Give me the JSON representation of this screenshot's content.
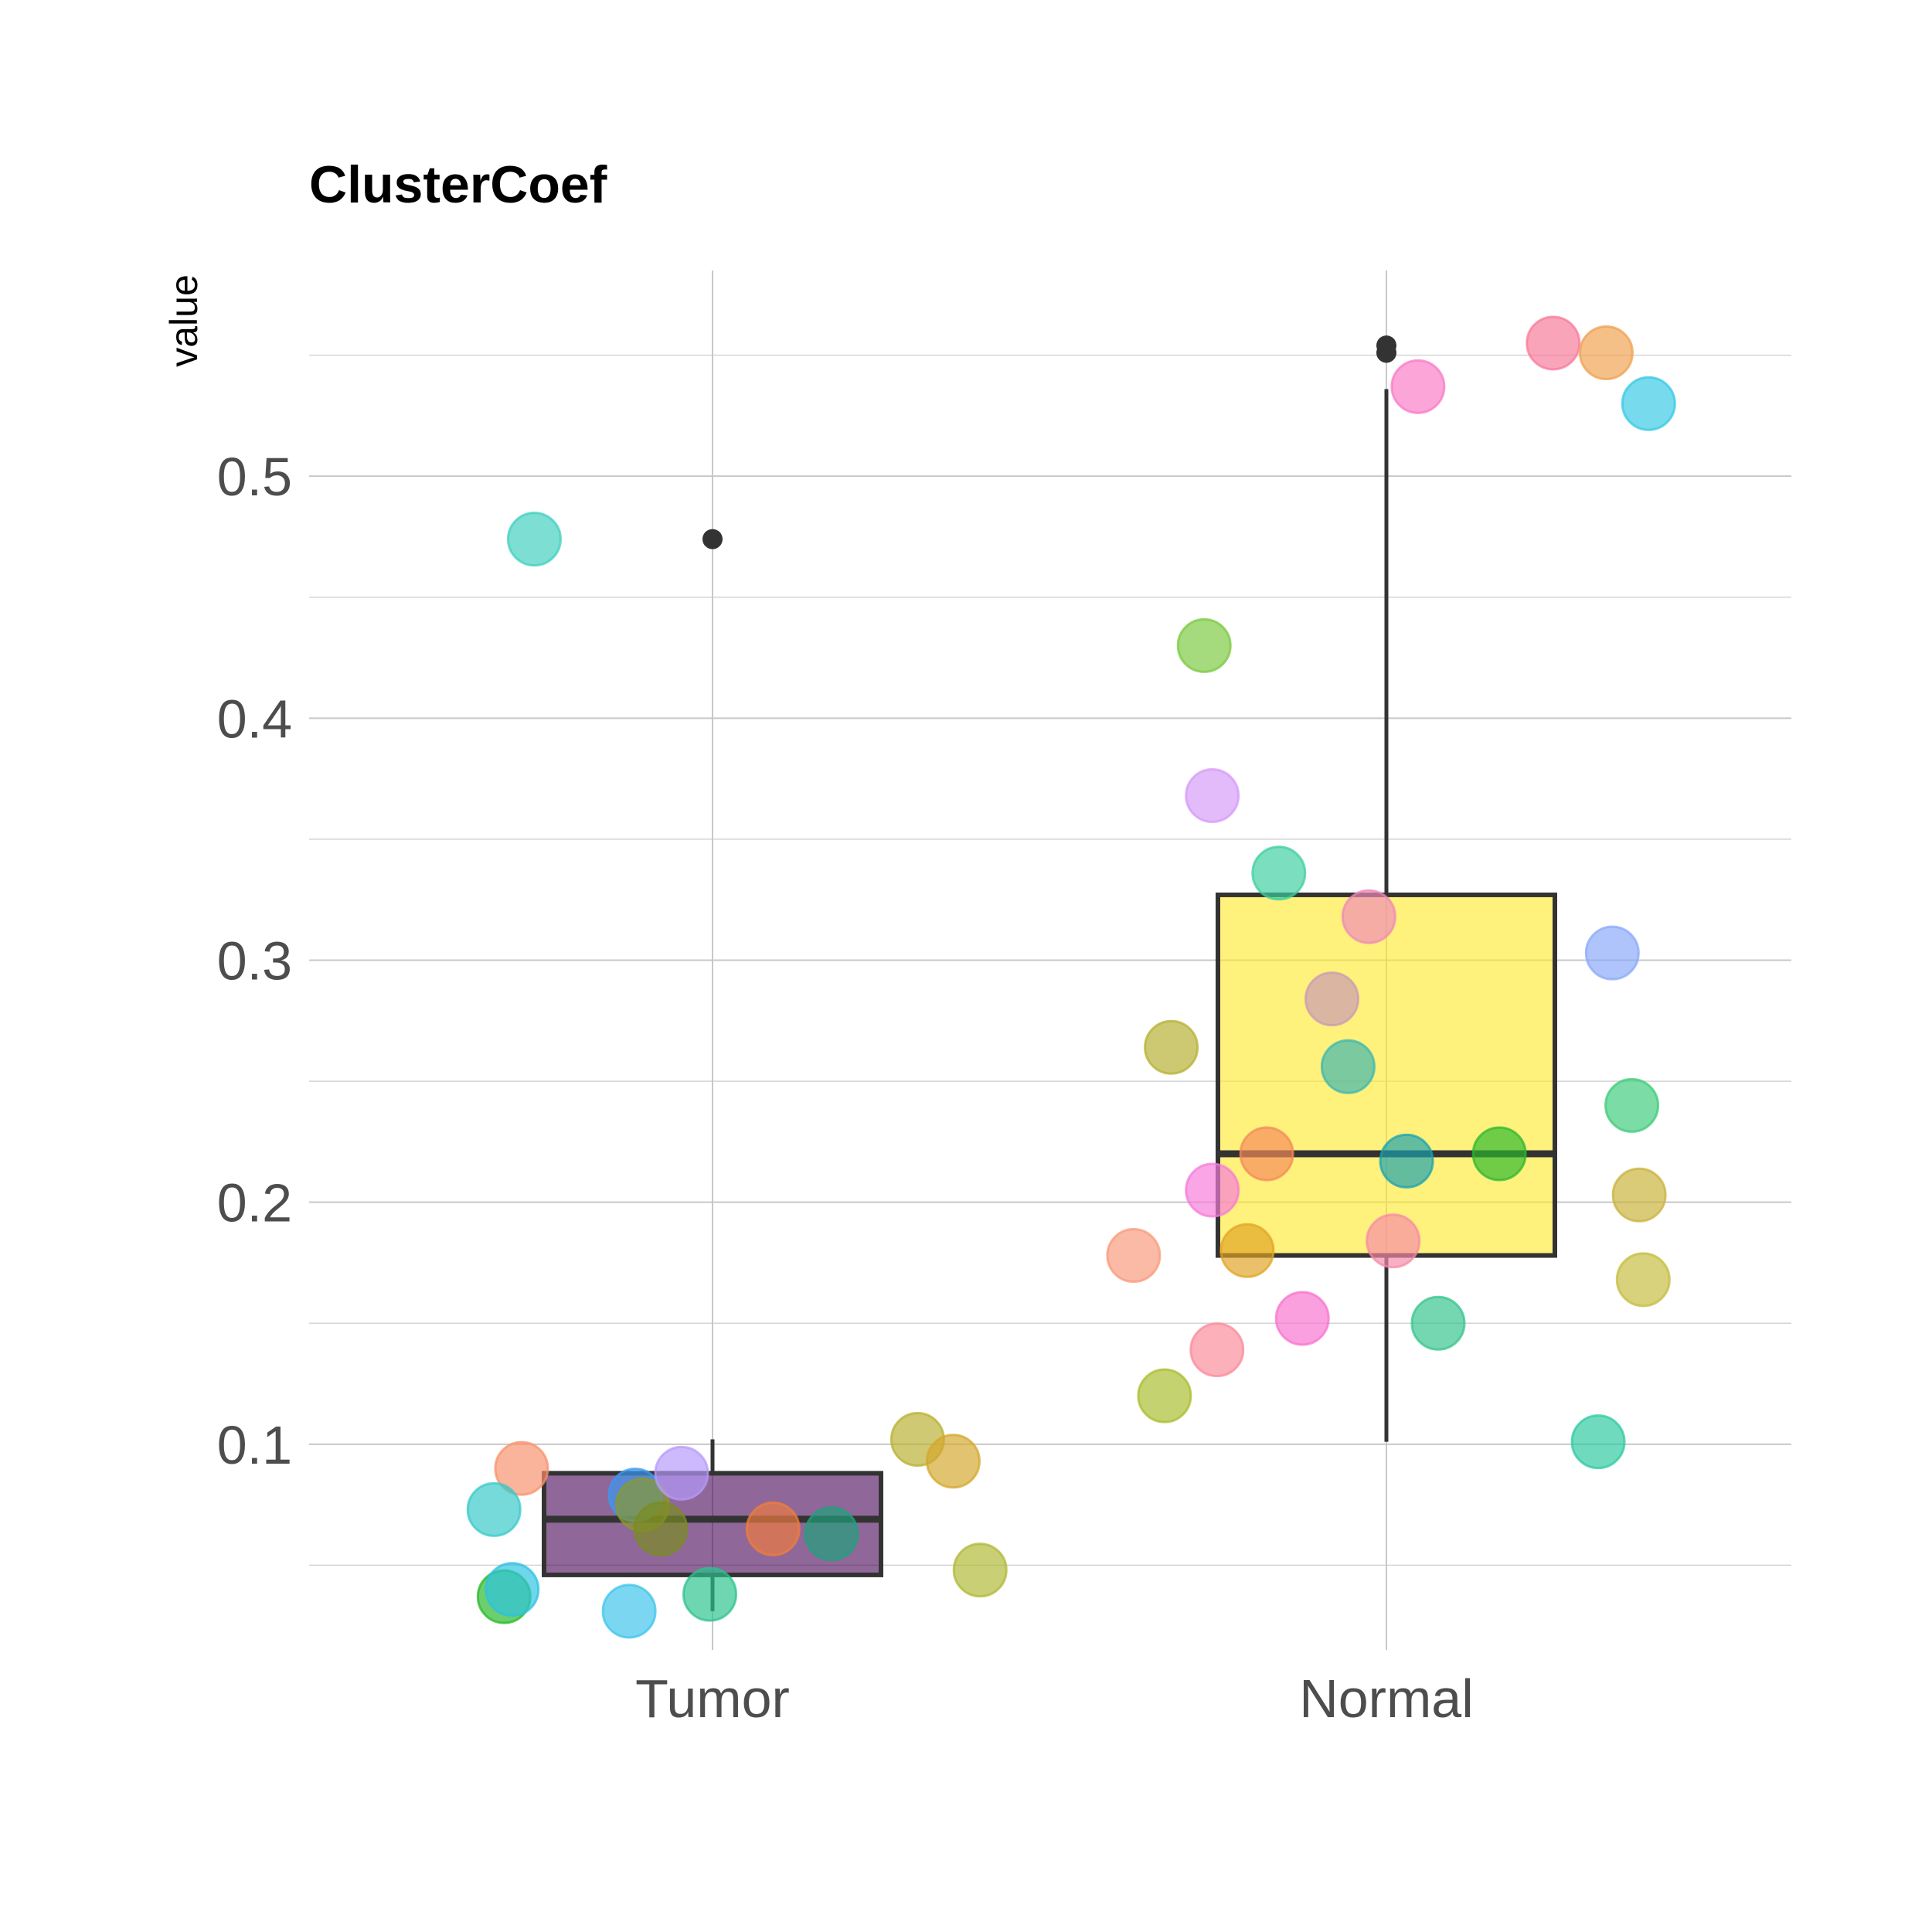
{
  "chart_data": {
    "type": "box",
    "title": "ClusterCoef",
    "ylabel": "value",
    "xlabel": "",
    "categories": [
      "Tumor",
      "Normal"
    ],
    "yticks": [
      0.1,
      0.2,
      0.3,
      0.4,
      0.5
    ],
    "ylim": [
      0.015,
      0.585
    ],
    "grid": true,
    "boxes": [
      {
        "category": "Tumor",
        "fill": "#440154",
        "q1": 0.046,
        "median": 0.069,
        "q3": 0.088,
        "whisker_low": 0.031,
        "whisker_high": 0.102,
        "outliers": [
          0.474
        ]
      },
      {
        "category": "Normal",
        "fill": "#fde725",
        "q1": 0.178,
        "median": 0.22,
        "q3": 0.327,
        "whisker_low": 0.101,
        "whisker_high": 0.536,
        "outliers": [
          0.551,
          0.554
        ]
      }
    ],
    "points": [
      {
        "category": "Tumor",
        "jitter": -0.265,
        "y": 0.474,
        "color": "#3fcfbf"
      },
      {
        "category": "Tumor",
        "jitter": -0.284,
        "y": 0.09,
        "color": "#f8916b"
      },
      {
        "category": "Tumor",
        "jitter": -0.325,
        "y": 0.073,
        "color": "#35c9c9"
      },
      {
        "category": "Tumor",
        "jitter": -0.31,
        "y": 0.037,
        "color": "#27b827"
      },
      {
        "category": "Tumor",
        "jitter": -0.298,
        "y": 0.04,
        "color": "#2cc2e2"
      },
      {
        "category": "Tumor",
        "jitter": -0.124,
        "y": 0.031,
        "color": "#3cc4ea"
      },
      {
        "category": "Tumor",
        "jitter": -0.115,
        "y": 0.079,
        "color": "#3a9af2"
      },
      {
        "category": "Tumor",
        "jitter": -0.104,
        "y": 0.075,
        "color": "#8a9a2c"
      },
      {
        "category": "Tumor",
        "jitter": -0.077,
        "y": 0.065,
        "color": "#7a8c20"
      },
      {
        "category": "Tumor",
        "jitter": -0.046,
        "y": 0.088,
        "color": "#b59afa"
      },
      {
        "category": "Tumor",
        "jitter": -0.004,
        "y": 0.038,
        "color": "#2bc28e"
      },
      {
        "category": "Tumor",
        "jitter": 0.09,
        "y": 0.065,
        "color": "#ef7c3e"
      },
      {
        "category": "Tumor",
        "jitter": 0.177,
        "y": 0.063,
        "color": "#1fa27c"
      },
      {
        "category": "Tumor",
        "jitter": 0.305,
        "y": 0.102,
        "color": "#b8b030"
      },
      {
        "category": "Tumor",
        "jitter": 0.358,
        "y": 0.093,
        "color": "#d4a72c"
      },
      {
        "category": "Tumor",
        "jitter": 0.398,
        "y": 0.048,
        "color": "#b0b834"
      },
      {
        "category": "Normal",
        "jitter": -0.376,
        "y": 0.178,
        "color": "#f89a7a"
      },
      {
        "category": "Normal",
        "jitter": -0.33,
        "y": 0.12,
        "color": "#a9bc2c"
      },
      {
        "category": "Normal",
        "jitter": -0.32,
        "y": 0.264,
        "color": "#b6b030"
      },
      {
        "category": "Normal",
        "jitter": -0.271,
        "y": 0.43,
        "color": "#7ac83f"
      },
      {
        "category": "Normal",
        "jitter": -0.252,
        "y": 0.139,
        "color": "#fb8a9a"
      },
      {
        "category": "Normal",
        "jitter": -0.259,
        "y": 0.368,
        "color": "#d59af8"
      },
      {
        "category": "Normal",
        "jitter": -0.259,
        "y": 0.205,
        "color": "#f77ad8"
      },
      {
        "category": "Normal",
        "jitter": -0.207,
        "y": 0.18,
        "color": "#e0a424"
      },
      {
        "category": "Normal",
        "jitter": -0.178,
        "y": 0.22,
        "color": "#f48a5a"
      },
      {
        "category": "Normal",
        "jitter": -0.16,
        "y": 0.336,
        "color": "#3ccf9f"
      },
      {
        "category": "Normal",
        "jitter": -0.125,
        "y": 0.152,
        "color": "#f773cf"
      },
      {
        "category": "Normal",
        "jitter": -0.081,
        "y": 0.284,
        "color": "#c89ab4"
      },
      {
        "category": "Normal",
        "jitter": -0.057,
        "y": 0.256,
        "color": "#3cb6b0"
      },
      {
        "category": "Normal",
        "jitter": -0.026,
        "y": 0.318,
        "color": "#ef8ab8"
      },
      {
        "category": "Normal",
        "jitter": 0.01,
        "y": 0.184,
        "color": "#f78aa8"
      },
      {
        "category": "Normal",
        "jitter": 0.03,
        "y": 0.217,
        "color": "#1aa2b0"
      },
      {
        "category": "Normal",
        "jitter": 0.047,
        "y": 0.537,
        "color": "#fa7ac6"
      },
      {
        "category": "Normal",
        "jitter": 0.077,
        "y": 0.15,
        "color": "#34c48c"
      },
      {
        "category": "Normal",
        "jitter": 0.168,
        "y": 0.22,
        "color": "#2cb82c"
      },
      {
        "category": "Normal",
        "jitter": 0.248,
        "y": 0.555,
        "color": "#f8799a"
      },
      {
        "category": "Normal",
        "jitter": 0.315,
        "y": 0.101,
        "color": "#2cc9a0"
      },
      {
        "category": "Normal",
        "jitter": 0.327,
        "y": 0.551,
        "color": "#f0a050"
      },
      {
        "category": "Normal",
        "jitter": 0.336,
        "y": 0.303,
        "color": "#8aa8fa"
      },
      {
        "category": "Normal",
        "jitter": 0.365,
        "y": 0.24,
        "color": "#3ccb7a"
      },
      {
        "category": "Normal",
        "jitter": 0.376,
        "y": 0.203,
        "color": "#c9b23a"
      },
      {
        "category": "Normal",
        "jitter": 0.382,
        "y": 0.168,
        "color": "#c4bc3c"
      },
      {
        "category": "Normal",
        "jitter": 0.39,
        "y": 0.53,
        "color": "#36c8e4"
      }
    ]
  }
}
